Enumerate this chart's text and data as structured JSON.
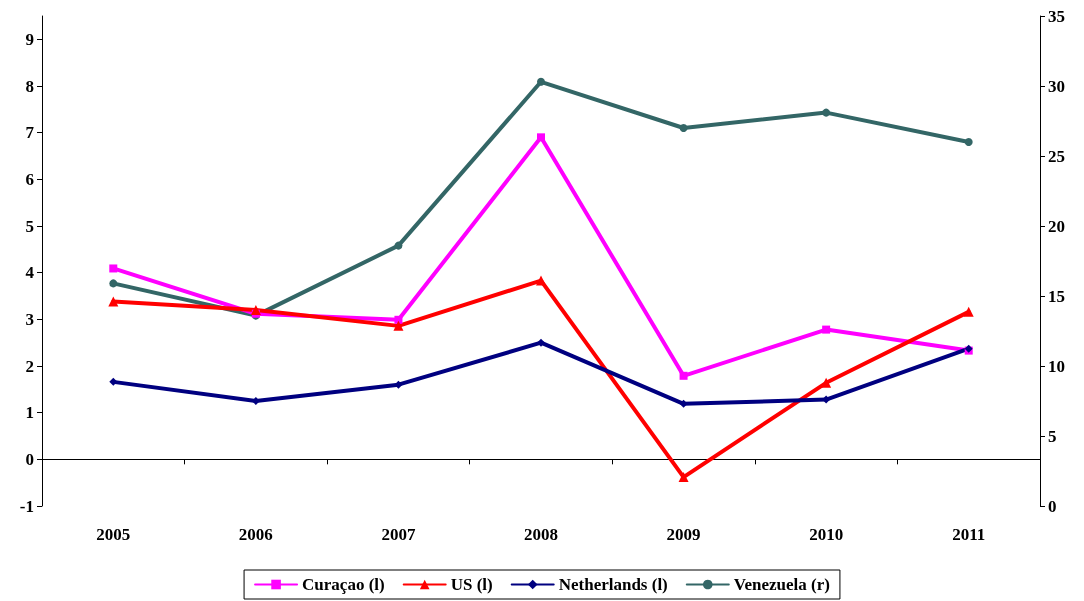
{
  "chart_data": {
    "type": "line",
    "categories": [
      "2005",
      "2006",
      "2007",
      "2008",
      "2009",
      "2010",
      "2011"
    ],
    "series": [
      {
        "name": "Curaçao (l)",
        "color": "#ff00ff",
        "marker": "square",
        "values": [
          4.09,
          3.12,
          2.99,
          6.9,
          1.79,
          2.78,
          2.33
        ]
      },
      {
        "name": "US (l)",
        "color": "#ff0000",
        "marker": "triangle",
        "values": [
          3.38,
          3.2,
          2.86,
          3.83,
          -0.38,
          1.64,
          3.16
        ]
      },
      {
        "name": "Netherlands (l)",
        "color": "#000080",
        "marker": "diamond",
        "values": [
          1.66,
          1.25,
          1.6,
          2.5,
          1.19,
          1.28,
          2.37
        ]
      },
      {
        "name": "Venezuela (r)",
        "color": "#336666",
        "marker": "circle",
        "axis": "y2",
        "values": [
          15.9,
          13.6,
          18.6,
          30.3,
          27.0,
          28.1,
          26.0
        ]
      }
    ],
    "ylim": [
      -1,
      9.5
    ],
    "yticks": [
      -1,
      0,
      1,
      2,
      3,
      4,
      5,
      6,
      7,
      8,
      9
    ],
    "y2lim": [
      0,
      35
    ],
    "y2ticks": [
      0,
      5,
      10,
      15,
      20,
      25,
      30,
      35
    ],
    "legend": "bottom",
    "line_style": "solid"
  }
}
